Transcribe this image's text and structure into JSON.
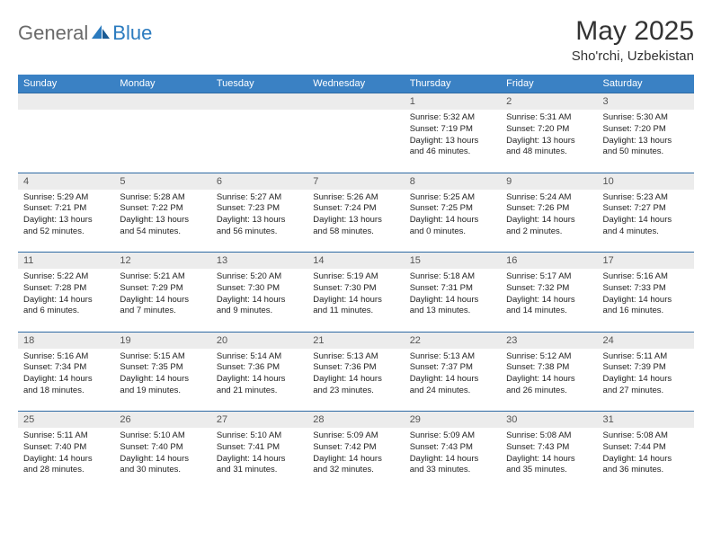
{
  "logo": {
    "word1": "General",
    "word2": "Blue"
  },
  "title": "May 2025",
  "location": "Sho'rchi, Uzbekistan",
  "colors": {
    "header_bg": "#3a81c4",
    "header_text": "#ffffff",
    "daynum_bg": "#ececec",
    "row_border": "#2e6aa3",
    "logo_gray": "#6a6a6a",
    "logo_blue": "#2b7bbf"
  },
  "day_names": [
    "Sunday",
    "Monday",
    "Tuesday",
    "Wednesday",
    "Thursday",
    "Friday",
    "Saturday"
  ],
  "weeks": [
    [
      {
        "n": "",
        "sr": "",
        "ss": "",
        "dl1": "",
        "dl2": ""
      },
      {
        "n": "",
        "sr": "",
        "ss": "",
        "dl1": "",
        "dl2": ""
      },
      {
        "n": "",
        "sr": "",
        "ss": "",
        "dl1": "",
        "dl2": ""
      },
      {
        "n": "",
        "sr": "",
        "ss": "",
        "dl1": "",
        "dl2": ""
      },
      {
        "n": "1",
        "sr": "Sunrise: 5:32 AM",
        "ss": "Sunset: 7:19 PM",
        "dl1": "Daylight: 13 hours",
        "dl2": "and 46 minutes."
      },
      {
        "n": "2",
        "sr": "Sunrise: 5:31 AM",
        "ss": "Sunset: 7:20 PM",
        "dl1": "Daylight: 13 hours",
        "dl2": "and 48 minutes."
      },
      {
        "n": "3",
        "sr": "Sunrise: 5:30 AM",
        "ss": "Sunset: 7:20 PM",
        "dl1": "Daylight: 13 hours",
        "dl2": "and 50 minutes."
      }
    ],
    [
      {
        "n": "4",
        "sr": "Sunrise: 5:29 AM",
        "ss": "Sunset: 7:21 PM",
        "dl1": "Daylight: 13 hours",
        "dl2": "and 52 minutes."
      },
      {
        "n": "5",
        "sr": "Sunrise: 5:28 AM",
        "ss": "Sunset: 7:22 PM",
        "dl1": "Daylight: 13 hours",
        "dl2": "and 54 minutes."
      },
      {
        "n": "6",
        "sr": "Sunrise: 5:27 AM",
        "ss": "Sunset: 7:23 PM",
        "dl1": "Daylight: 13 hours",
        "dl2": "and 56 minutes."
      },
      {
        "n": "7",
        "sr": "Sunrise: 5:26 AM",
        "ss": "Sunset: 7:24 PM",
        "dl1": "Daylight: 13 hours",
        "dl2": "and 58 minutes."
      },
      {
        "n": "8",
        "sr": "Sunrise: 5:25 AM",
        "ss": "Sunset: 7:25 PM",
        "dl1": "Daylight: 14 hours",
        "dl2": "and 0 minutes."
      },
      {
        "n": "9",
        "sr": "Sunrise: 5:24 AM",
        "ss": "Sunset: 7:26 PM",
        "dl1": "Daylight: 14 hours",
        "dl2": "and 2 minutes."
      },
      {
        "n": "10",
        "sr": "Sunrise: 5:23 AM",
        "ss": "Sunset: 7:27 PM",
        "dl1": "Daylight: 14 hours",
        "dl2": "and 4 minutes."
      }
    ],
    [
      {
        "n": "11",
        "sr": "Sunrise: 5:22 AM",
        "ss": "Sunset: 7:28 PM",
        "dl1": "Daylight: 14 hours",
        "dl2": "and 6 minutes."
      },
      {
        "n": "12",
        "sr": "Sunrise: 5:21 AM",
        "ss": "Sunset: 7:29 PM",
        "dl1": "Daylight: 14 hours",
        "dl2": "and 7 minutes."
      },
      {
        "n": "13",
        "sr": "Sunrise: 5:20 AM",
        "ss": "Sunset: 7:30 PM",
        "dl1": "Daylight: 14 hours",
        "dl2": "and 9 minutes."
      },
      {
        "n": "14",
        "sr": "Sunrise: 5:19 AM",
        "ss": "Sunset: 7:30 PM",
        "dl1": "Daylight: 14 hours",
        "dl2": "and 11 minutes."
      },
      {
        "n": "15",
        "sr": "Sunrise: 5:18 AM",
        "ss": "Sunset: 7:31 PM",
        "dl1": "Daylight: 14 hours",
        "dl2": "and 13 minutes."
      },
      {
        "n": "16",
        "sr": "Sunrise: 5:17 AM",
        "ss": "Sunset: 7:32 PM",
        "dl1": "Daylight: 14 hours",
        "dl2": "and 14 minutes."
      },
      {
        "n": "17",
        "sr": "Sunrise: 5:16 AM",
        "ss": "Sunset: 7:33 PM",
        "dl1": "Daylight: 14 hours",
        "dl2": "and 16 minutes."
      }
    ],
    [
      {
        "n": "18",
        "sr": "Sunrise: 5:16 AM",
        "ss": "Sunset: 7:34 PM",
        "dl1": "Daylight: 14 hours",
        "dl2": "and 18 minutes."
      },
      {
        "n": "19",
        "sr": "Sunrise: 5:15 AM",
        "ss": "Sunset: 7:35 PM",
        "dl1": "Daylight: 14 hours",
        "dl2": "and 19 minutes."
      },
      {
        "n": "20",
        "sr": "Sunrise: 5:14 AM",
        "ss": "Sunset: 7:36 PM",
        "dl1": "Daylight: 14 hours",
        "dl2": "and 21 minutes."
      },
      {
        "n": "21",
        "sr": "Sunrise: 5:13 AM",
        "ss": "Sunset: 7:36 PM",
        "dl1": "Daylight: 14 hours",
        "dl2": "and 23 minutes."
      },
      {
        "n": "22",
        "sr": "Sunrise: 5:13 AM",
        "ss": "Sunset: 7:37 PM",
        "dl1": "Daylight: 14 hours",
        "dl2": "and 24 minutes."
      },
      {
        "n": "23",
        "sr": "Sunrise: 5:12 AM",
        "ss": "Sunset: 7:38 PM",
        "dl1": "Daylight: 14 hours",
        "dl2": "and 26 minutes."
      },
      {
        "n": "24",
        "sr": "Sunrise: 5:11 AM",
        "ss": "Sunset: 7:39 PM",
        "dl1": "Daylight: 14 hours",
        "dl2": "and 27 minutes."
      }
    ],
    [
      {
        "n": "25",
        "sr": "Sunrise: 5:11 AM",
        "ss": "Sunset: 7:40 PM",
        "dl1": "Daylight: 14 hours",
        "dl2": "and 28 minutes."
      },
      {
        "n": "26",
        "sr": "Sunrise: 5:10 AM",
        "ss": "Sunset: 7:40 PM",
        "dl1": "Daylight: 14 hours",
        "dl2": "and 30 minutes."
      },
      {
        "n": "27",
        "sr": "Sunrise: 5:10 AM",
        "ss": "Sunset: 7:41 PM",
        "dl1": "Daylight: 14 hours",
        "dl2": "and 31 minutes."
      },
      {
        "n": "28",
        "sr": "Sunrise: 5:09 AM",
        "ss": "Sunset: 7:42 PM",
        "dl1": "Daylight: 14 hours",
        "dl2": "and 32 minutes."
      },
      {
        "n": "29",
        "sr": "Sunrise: 5:09 AM",
        "ss": "Sunset: 7:43 PM",
        "dl1": "Daylight: 14 hours",
        "dl2": "and 33 minutes."
      },
      {
        "n": "30",
        "sr": "Sunrise: 5:08 AM",
        "ss": "Sunset: 7:43 PM",
        "dl1": "Daylight: 14 hours",
        "dl2": "and 35 minutes."
      },
      {
        "n": "31",
        "sr": "Sunrise: 5:08 AM",
        "ss": "Sunset: 7:44 PM",
        "dl1": "Daylight: 14 hours",
        "dl2": "and 36 minutes."
      }
    ]
  ]
}
